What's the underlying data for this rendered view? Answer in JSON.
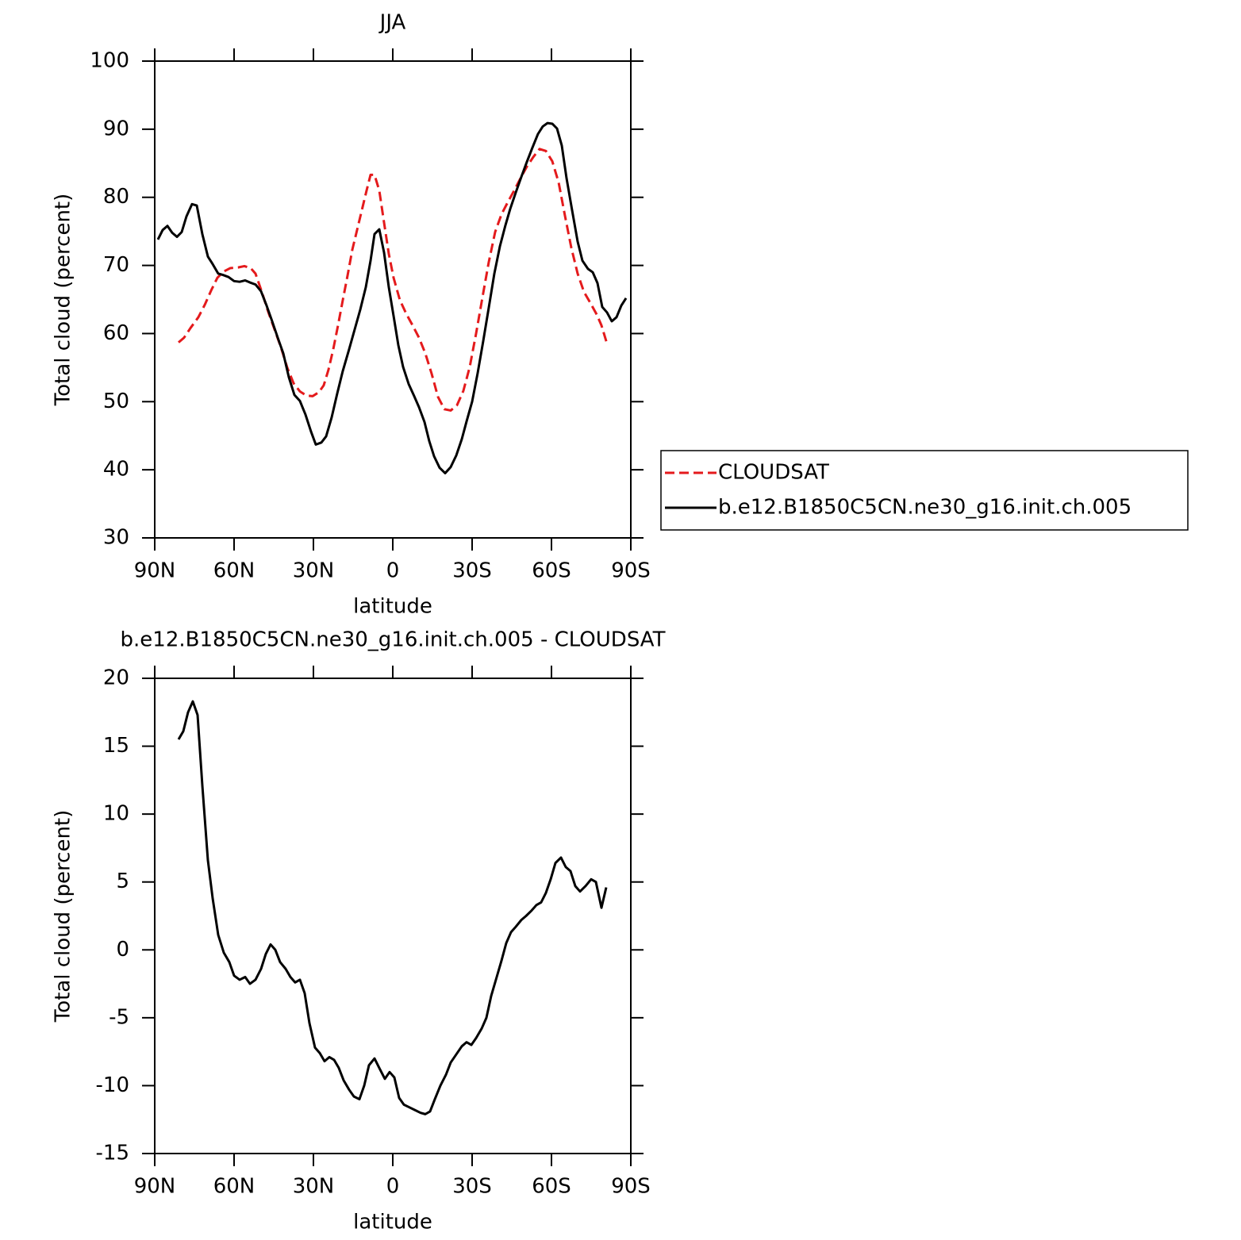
{
  "chart_data": [
    {
      "type": "line",
      "title": "JJA",
      "xlabel": "latitude",
      "ylabel": "Total cloud (percent)",
      "xlim": [
        90,
        -90
      ],
      "xticks": [
        {
          "value": 90,
          "label": "90N"
        },
        {
          "value": 60,
          "label": "60N"
        },
        {
          "value": 30,
          "label": "30N"
        },
        0,
        {
          "value": -30,
          "label": "30S"
        },
        {
          "value": -60,
          "label": "60S"
        },
        {
          "value": -90,
          "label": "90S"
        }
      ],
      "ylim": [
        30,
        100
      ],
      "yticks": [
        30,
        40,
        50,
        60,
        70,
        80,
        90,
        100
      ],
      "legend": "right",
      "series": [
        {
          "name": "CLOUDSAT",
          "color": "#e41a1c",
          "dashed": true,
          "x": [
            81,
            78.9,
            76.5,
            73.5,
            71.1,
            68.7,
            66.3,
            63.9,
            61.5,
            58.5,
            56.1,
            53.7,
            51.9,
            49.5,
            47.1,
            44.7,
            42.3,
            39.9,
            37.5,
            35.1,
            32.7,
            30.3,
            27.9,
            26.1,
            24.3,
            22.5,
            20.7,
            18.9,
            17.1,
            15.3,
            13.5,
            11.7,
            9.9,
            8.4,
            6.9,
            5.1,
            3.3,
            1.5,
            -0.3,
            -2.7,
            -5.1,
            -7.5,
            -9.9,
            -12.3,
            -14.7,
            -17.1,
            -19.5,
            -21.9,
            -24.3,
            -26.7,
            -29.1,
            -31.5,
            -33.9,
            -36.3,
            -38.7,
            -41.1,
            -43.5,
            -45.9,
            -48.3,
            -50.7,
            -53.1,
            -55.5,
            -57.9,
            -60.3,
            -62.7,
            -65.1,
            -67.5,
            -69.9,
            -72.3,
            -74.7,
            -77.1,
            -78.9,
            -81
          ],
          "values": [
            58.7,
            59.4,
            60.8,
            62.4,
            64.2,
            66.3,
            68.2,
            69.1,
            69.6,
            69.7,
            69.9,
            69.6,
            68.8,
            66.1,
            63.2,
            60.6,
            58.0,
            55.0,
            52.7,
            51.5,
            50.9,
            50.8,
            51.4,
            52.4,
            54.7,
            57.7,
            61.2,
            64.9,
            68.5,
            72.3,
            75.2,
            78.1,
            81.0,
            83.3,
            83.3,
            81.0,
            76.3,
            71.7,
            68.2,
            64.9,
            62.9,
            61.2,
            59.4,
            57.1,
            54.1,
            50.7,
            48.9,
            48.7,
            49.5,
            51.6,
            55.1,
            60.0,
            65.3,
            70.5,
            74.9,
            77.5,
            79.3,
            81.0,
            82.8,
            84.5,
            85.9,
            87.1,
            86.8,
            85.3,
            82.2,
            77.3,
            72.6,
            68.8,
            66.1,
            64.5,
            62.8,
            61.2,
            58.5
          ]
        },
        {
          "name": "b.e12.B1850C5CN.ne30_g16.init.ch.005",
          "color": "#000000",
          "dashed": false,
          "x": [
            88.8,
            87,
            85.2,
            83.4,
            81.6,
            79.8,
            78,
            75.9,
            74.1,
            72,
            69.9,
            68.1,
            66,
            64.2,
            62.1,
            60,
            57.9,
            55.8,
            54,
            51.9,
            49.8,
            47.7,
            45.6,
            43.5,
            41.4,
            39.3,
            37.2,
            35.1,
            33,
            30.9,
            29.1,
            27,
            25.2,
            23.1,
            21,
            18.9,
            16.5,
            14.4,
            12.3,
            10.2,
            8.4,
            6.9,
            5.1,
            3.3,
            1.5,
            -0.3,
            -2.1,
            -3.9,
            -6,
            -8.1,
            -9.9,
            -12,
            -13.8,
            -15.6,
            -17.7,
            -19.8,
            -21.9,
            -24,
            -26.1,
            -27.9,
            -30,
            -32.1,
            -34.2,
            -36.3,
            -38.4,
            -40.5,
            -42.6,
            -44.4,
            -46.5,
            -48.6,
            -50.7,
            -52.8,
            -54.9,
            -56.7,
            -58.5,
            -60.3,
            -62.1,
            -63.9,
            -65.7,
            -67.8,
            -69.9,
            -71.7,
            -73.8,
            -75.6,
            -77.4,
            -79.2,
            -81,
            -82.8,
            -84.6,
            -86.4,
            -88.2
          ],
          "values": [
            73.8,
            75.2,
            75.8,
            74.8,
            74.2,
            74.9,
            77.2,
            79.0,
            78.8,
            74.6,
            71.3,
            70.2,
            68.8,
            68.6,
            68.3,
            67.7,
            67.6,
            67.8,
            67.5,
            67.2,
            66.2,
            64.1,
            61.8,
            59.4,
            57.1,
            53.6,
            51.0,
            50.1,
            48.1,
            45.6,
            43.7,
            44.0,
            44.9,
            47.7,
            51.2,
            54.5,
            57.7,
            60.6,
            63.5,
            66.8,
            70.7,
            74.6,
            75.3,
            71.9,
            66.8,
            62.6,
            58.3,
            55.1,
            52.6,
            50.8,
            49.2,
            47.0,
            44.2,
            42.0,
            40.3,
            39.5,
            40.4,
            42.1,
            44.5,
            47.1,
            50.0,
            54.2,
            58.9,
            63.8,
            68.8,
            72.8,
            75.9,
            78.3,
            80.7,
            83.0,
            85.2,
            87.3,
            89.3,
            90.4,
            90.9,
            90.8,
            90.1,
            87.6,
            82.8,
            78.1,
            73.5,
            70.7,
            69.5,
            69.0,
            67.4,
            63.9,
            63.1,
            61.8,
            62.4,
            64.1,
            65.2
          ]
        }
      ]
    },
    {
      "type": "line",
      "title": "b.e12.B1850C5CN.ne30_g16.init.ch.005 - CLOUDSAT",
      "xlabel": "latitude",
      "ylabel": "Total cloud (percent)",
      "xlim": [
        90,
        -90
      ],
      "xticks": [
        {
          "value": 90,
          "label": "90N"
        },
        {
          "value": 60,
          "label": "60N"
        },
        {
          "value": 30,
          "label": "30N"
        },
        0,
        {
          "value": -30,
          "label": "30S"
        },
        {
          "value": -60,
          "label": "60S"
        },
        {
          "value": -90,
          "label": "90S"
        }
      ],
      "ylim": [
        -15,
        20
      ],
      "yticks": [
        -15,
        -10,
        -5,
        0,
        5,
        10,
        15,
        20
      ],
      "series": [
        {
          "color": "#000000",
          "dashed": false,
          "x": [
            81,
            79.2,
            77.4,
            75.6,
            73.8,
            72,
            69.9,
            68.1,
            66,
            63.9,
            61.8,
            60,
            57.9,
            55.8,
            54,
            51.9,
            49.8,
            48,
            46.2,
            44.4,
            42.6,
            40.5,
            38.7,
            36.9,
            35.1,
            33.3,
            31.5,
            29.4,
            27.6,
            25.8,
            24,
            22.2,
            20.4,
            18.6,
            16.5,
            14.7,
            12.6,
            10.8,
            9,
            6.9,
            5.1,
            3,
            1.2,
            -0.6,
            -2.4,
            -4.2,
            -6.3,
            -8.4,
            -10.5,
            -12.3,
            -14.1,
            -15.9,
            -18,
            -20.1,
            -21.9,
            -24,
            -26.1,
            -27.9,
            -29.7,
            -31.5,
            -33.6,
            -35.4,
            -37.2,
            -39.3,
            -41.1,
            -42.9,
            -44.7,
            -46.5,
            -48.6,
            -50.4,
            -52.5,
            -54.3,
            -56.1,
            -57.9,
            -59.7,
            -61.5,
            -63.6,
            -65.4,
            -67.2,
            -69,
            -70.8,
            -72.9,
            -75,
            -76.8,
            -78.9,
            -80.7
          ],
          "values": [
            15.5,
            16.1,
            17.5,
            18.3,
            17.3,
            12.1,
            6.6,
            3.8,
            1.1,
            -0.2,
            -0.9,
            -1.9,
            -2.2,
            -2.0,
            -2.5,
            -2.2,
            -1.4,
            -0.3,
            0.4,
            0.0,
            -0.9,
            -1.4,
            -2.0,
            -2.4,
            -2.2,
            -3.2,
            -5.4,
            -7.2,
            -7.6,
            -8.2,
            -7.9,
            -8.1,
            -8.7,
            -9.6,
            -10.3,
            -10.8,
            -11.0,
            -10.0,
            -8.5,
            -8.0,
            -8.7,
            -9.5,
            -9.0,
            -9.4,
            -10.9,
            -11.4,
            -11.6,
            -11.8,
            -12.0,
            -12.1,
            -11.9,
            -11.0,
            -10.0,
            -9.2,
            -8.3,
            -7.7,
            -7.1,
            -6.8,
            -7.0,
            -6.5,
            -5.8,
            -5.0,
            -3.4,
            -2.0,
            -0.8,
            0.5,
            1.3,
            1.7,
            2.2,
            2.5,
            2.9,
            3.3,
            3.5,
            4.2,
            5.2,
            6.4,
            6.8,
            6.1,
            5.8,
            4.7,
            4.3,
            4.7,
            5.2,
            5.0,
            3.1,
            4.6
          ]
        }
      ]
    }
  ]
}
